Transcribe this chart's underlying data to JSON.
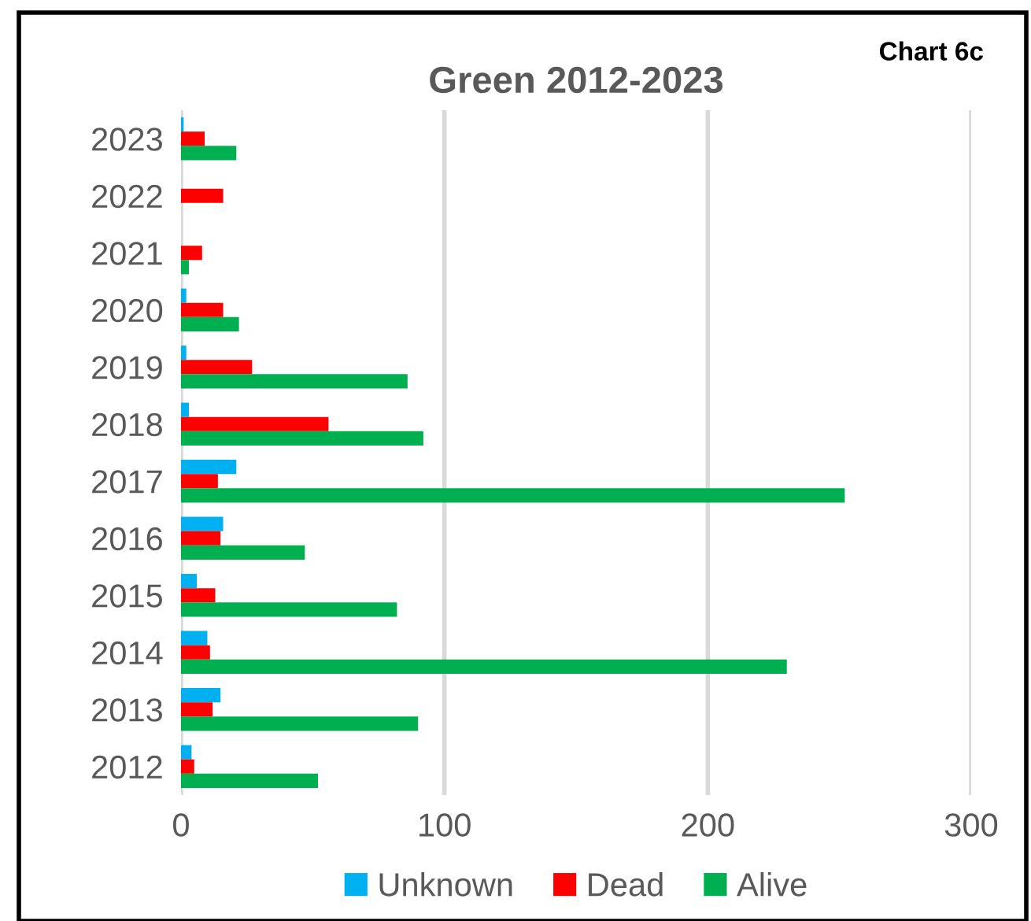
{
  "chart_data": {
    "type": "bar",
    "orientation": "horizontal",
    "title": "Green 2012-2023",
    "annotations": [
      "Chart 6c"
    ],
    "categories": [
      "2023",
      "2022",
      "2021",
      "2020",
      "2019",
      "2018",
      "2017",
      "2016",
      "2015",
      "2014",
      "2013",
      "2012"
    ],
    "series": [
      {
        "name": "Unknown",
        "color": "#00b0f0",
        "values": [
          1,
          0,
          0,
          2,
          2,
          3,
          21,
          16,
          6,
          10,
          15,
          4
        ]
      },
      {
        "name": "Dead",
        "color": "#ff0000",
        "values": [
          9,
          16,
          8,
          16,
          27,
          56,
          14,
          15,
          13,
          11,
          12,
          5
        ]
      },
      {
        "name": "Alive",
        "color": "#00b050",
        "values": [
          21,
          0,
          3,
          22,
          86,
          92,
          252,
          47,
          82,
          230,
          90,
          52
        ]
      }
    ],
    "xlim": [
      0,
      300
    ],
    "xticks": [
      0,
      100,
      200,
      300
    ],
    "grid": "x",
    "legend": "bottom"
  }
}
